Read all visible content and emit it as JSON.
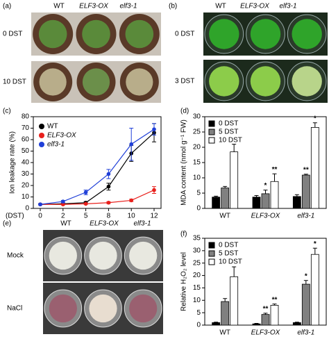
{
  "photo_panels": [
    {
      "panel_label": "(a)",
      "columns": [
        "WT",
        "ELF3-OX",
        "elf3-1"
      ],
      "rows": [
        "0 DST",
        "10 DST"
      ]
    },
    {
      "panel_label": "(b)",
      "columns": [
        "WT",
        "ELF3-OX",
        "elf3-1"
      ],
      "rows": [
        "0 DST",
        "3 DST"
      ]
    },
    {
      "panel_label": "(e)",
      "columns": [
        "WT",
        "ELF3-OX",
        "elf3-1"
      ],
      "rows": [
        "Mock",
        "NaCl"
      ]
    }
  ],
  "chart_data": [
    {
      "type": "line",
      "panel_label": "(c)",
      "y_label": "Ion leakage rate (%)",
      "x_label": "(DST)",
      "categories": [
        "0",
        "2",
        "5",
        "8",
        "10",
        "12"
      ],
      "ylim": [
        0,
        80
      ],
      "yticks": [
        0,
        10,
        20,
        30,
        40,
        50,
        60,
        70,
        80
      ],
      "legend": "upper-left",
      "series": [
        {
          "name": "WT",
          "color": "#000000",
          "values": [
            3.5,
            4,
            5,
            19,
            48,
            66
          ],
          "errors": [
            0.5,
            0.5,
            1,
            3,
            7,
            8
          ]
        },
        {
          "name": "ELF3-OX",
          "color": "#e8201c",
          "values": [
            3.5,
            3.5,
            4,
            5,
            7,
            16
          ],
          "errors": [
            0.5,
            0.5,
            0.5,
            0.8,
            1,
            3
          ]
        },
        {
          "name": "elf3-1",
          "color": "#1f3fd8",
          "values": [
            3.5,
            6,
            14,
            30,
            56,
            69
          ],
          "errors": [
            0.5,
            1,
            2,
            4,
            14,
            5
          ]
        }
      ]
    },
    {
      "type": "bar",
      "panel_label": "(d)",
      "y_label": "MDA content (nmol g⁻¹ FW)",
      "categories": [
        "WT",
        "ELF3-OX",
        "elf3-1"
      ],
      "ylim": [
        0,
        30
      ],
      "yticks": [
        0,
        5,
        10,
        15,
        20,
        25,
        30
      ],
      "legend": "upper-left",
      "series": [
        {
          "name": "0 DST",
          "color": "#000000",
          "values": [
            3.7,
            3.7,
            3.9
          ],
          "errors": [
            0.3,
            0.5,
            0.6
          ],
          "significance": [
            null,
            null,
            null
          ]
        },
        {
          "name": "5 DST",
          "color": "#808080",
          "values": [
            6.7,
            4.8,
            10.9
          ],
          "errors": [
            0.5,
            1.2,
            0.3
          ],
          "significance": [
            null,
            "*",
            "**"
          ]
        },
        {
          "name": "10 DST",
          "color": "#ffffff",
          "values": [
            18.5,
            8.8,
            26.5
          ],
          "errors": [
            2.5,
            2.5,
            1.5
          ],
          "significance": [
            null,
            "**",
            "*"
          ]
        }
      ]
    },
    {
      "type": "bar",
      "panel_label": "(f)",
      "y_label": "Relative H₂O₂ level",
      "categories": [
        "WT",
        "ELF3-OX",
        "elf3-1"
      ],
      "ylim": [
        0,
        35
      ],
      "yticks": [
        0,
        5,
        10,
        15,
        20,
        25,
        30,
        35
      ],
      "legend": "upper-left",
      "series": [
        {
          "name": "0 DST",
          "color": "#000000",
          "values": [
            1,
            0.5,
            1
          ],
          "errors": [
            0.2,
            0.2,
            0.2
          ],
          "significance": [
            null,
            null,
            null
          ]
        },
        {
          "name": "5 DST",
          "color": "#808080",
          "values": [
            9.5,
            4.3,
            16.5
          ],
          "errors": [
            1.2,
            0.5,
            1.5
          ],
          "significance": [
            null,
            "**",
            "*"
          ]
        },
        {
          "name": "10 DST",
          "color": "#ffffff",
          "values": [
            19.5,
            8,
            28.5
          ],
          "errors": [
            4,
            0.5,
            2.5
          ],
          "significance": [
            null,
            "**",
            "*"
          ]
        }
      ]
    }
  ]
}
